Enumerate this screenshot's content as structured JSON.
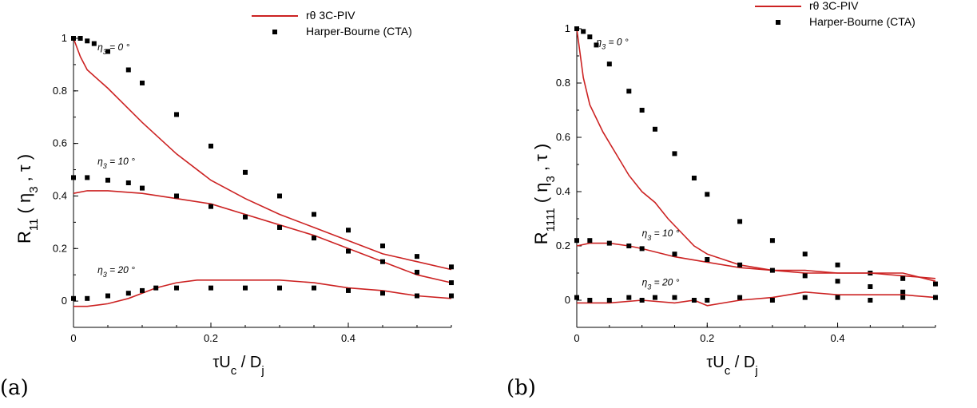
{
  "chart_data": [
    {
      "panel_label": "(a)",
      "type": "line",
      "xlabel_parts": [
        "τU",
        "c",
        " / D",
        "j"
      ],
      "ylabel_parts": [
        "R",
        "11",
        " ( η",
        "3",
        " , τ )"
      ],
      "xlim": [
        0,
        0.55
      ],
      "ylim": [
        -0.1,
        1.0
      ],
      "xticks": [
        0,
        0.2,
        0.4
      ],
      "xtick_labels": [
        "0",
        "0.2",
        "0.4"
      ],
      "yticks": [
        0,
        0.2,
        0.4,
        0.6,
        0.8,
        1
      ],
      "ytick_labels": [
        "0",
        "0.2",
        "0.4",
        "0.6",
        "0.8",
        "1"
      ],
      "grid": false,
      "legend": {
        "placement": "top-right",
        "entries": [
          {
            "label": "rθ 3C-PIV",
            "marker": "line",
            "color": "#cc2222"
          },
          {
            "label": "Harper-Bourne (CTA)",
            "marker": "square",
            "color": "#000000"
          }
        ]
      },
      "annotations": [
        {
          "parts": [
            "η",
            "3",
            " = 0 °"
          ],
          "x": 0.035,
          "y": 0.955
        },
        {
          "parts": [
            "η",
            "3",
            " = 10 °"
          ],
          "x": 0.035,
          "y": 0.52
        },
        {
          "parts": [
            "η",
            "3",
            " = 20 °"
          ],
          "x": 0.035,
          "y": 0.107
        }
      ],
      "series": [
        {
          "name": "rθ 3C-PIV",
          "angle": "η3 = 0°",
          "style": "line",
          "color": "#cc2222",
          "x": [
            0,
            0.01,
            0.02,
            0.05,
            0.1,
            0.15,
            0.2,
            0.25,
            0.3,
            0.35,
            0.4,
            0.45,
            0.5,
            0.55
          ],
          "y": [
            1.0,
            0.93,
            0.88,
            0.81,
            0.68,
            0.56,
            0.46,
            0.39,
            0.33,
            0.28,
            0.23,
            0.18,
            0.15,
            0.12
          ]
        },
        {
          "name": "Harper-Bourne (CTA)",
          "angle": "η3 = 0°",
          "style": "markers",
          "color": "#000000",
          "x": [
            0,
            0.01,
            0.02,
            0.03,
            0.05,
            0.08,
            0.1,
            0.15,
            0.2,
            0.25,
            0.3,
            0.35,
            0.4,
            0.45,
            0.5,
            0.55
          ],
          "y": [
            1.0,
            1.0,
            0.99,
            0.98,
            0.95,
            0.88,
            0.83,
            0.71,
            0.59,
            0.49,
            0.4,
            0.33,
            0.27,
            0.21,
            0.17,
            0.13
          ]
        },
        {
          "name": "rθ 3C-PIV",
          "angle": "η3 = 10°",
          "style": "line",
          "color": "#cc2222",
          "x": [
            0,
            0.02,
            0.05,
            0.1,
            0.15,
            0.2,
            0.25,
            0.3,
            0.35,
            0.4,
            0.45,
            0.5,
            0.55
          ],
          "y": [
            0.41,
            0.42,
            0.42,
            0.41,
            0.39,
            0.37,
            0.33,
            0.29,
            0.25,
            0.2,
            0.15,
            0.1,
            0.07
          ]
        },
        {
          "name": "Harper-Bourne (CTA)",
          "angle": "η3 = 10°",
          "style": "markers",
          "color": "#000000",
          "x": [
            0,
            0.02,
            0.05,
            0.08,
            0.1,
            0.15,
            0.2,
            0.25,
            0.3,
            0.35,
            0.4,
            0.45,
            0.5,
            0.55
          ],
          "y": [
            0.47,
            0.47,
            0.46,
            0.45,
            0.43,
            0.4,
            0.36,
            0.32,
            0.28,
            0.24,
            0.19,
            0.15,
            0.11,
            0.07
          ]
        },
        {
          "name": "rθ 3C-PIV",
          "angle": "η3 = 20°",
          "style": "line",
          "color": "#cc2222",
          "x": [
            0,
            0.02,
            0.05,
            0.08,
            0.1,
            0.12,
            0.15,
            0.18,
            0.2,
            0.25,
            0.3,
            0.35,
            0.4,
            0.45,
            0.5,
            0.55
          ],
          "y": [
            -0.02,
            -0.02,
            -0.01,
            0.01,
            0.03,
            0.05,
            0.07,
            0.08,
            0.08,
            0.08,
            0.08,
            0.07,
            0.05,
            0.04,
            0.02,
            0.01
          ]
        },
        {
          "name": "Harper-Bourne (CTA)",
          "angle": "η3 = 20°",
          "style": "markers",
          "color": "#000000",
          "x": [
            0,
            0.02,
            0.05,
            0.08,
            0.1,
            0.12,
            0.15,
            0.2,
            0.25,
            0.3,
            0.35,
            0.4,
            0.45,
            0.5,
            0.55
          ],
          "y": [
            0.01,
            0.01,
            0.02,
            0.03,
            0.04,
            0.05,
            0.05,
            0.05,
            0.05,
            0.05,
            0.05,
            0.04,
            0.03,
            0.02,
            0.02
          ]
        }
      ]
    },
    {
      "panel_label": "(b)",
      "type": "line",
      "xlabel_parts": [
        "τU",
        "c",
        " / D",
        "j"
      ],
      "ylabel_parts": [
        "R",
        "1111",
        " ( η",
        "3",
        " , τ )"
      ],
      "xlim": [
        0,
        0.55
      ],
      "ylim": [
        -0.1,
        1.0
      ],
      "xticks": [
        0,
        0.2,
        0.4
      ],
      "xtick_labels": [
        "0",
        "0.2",
        "0.4"
      ],
      "yticks": [
        0,
        0.2,
        0.4,
        0.6,
        0.8,
        1
      ],
      "ytick_labels": [
        "0",
        "0.2",
        "0.4",
        "0.6",
        "0.8",
        "1"
      ],
      "grid": false,
      "legend": {
        "placement": "top-right",
        "entries": [
          {
            "label": "rθ 3C-PIV",
            "marker": "line",
            "color": "#cc2222"
          },
          {
            "label": "Harper-Bourne (CTA)",
            "marker": "square",
            "color": "#000000"
          }
        ]
      },
      "annotations": [
        {
          "parts": [
            "η",
            "3",
            " = 0 °"
          ],
          "x": 0.03,
          "y": 0.94
        },
        {
          "parts": [
            "η",
            "3",
            " = 10 °"
          ],
          "x": 0.1,
          "y": 0.235
        },
        {
          "parts": [
            "η",
            "3",
            " = 20 °"
          ],
          "x": 0.1,
          "y": 0.055
        }
      ],
      "series": [
        {
          "name": "rθ 3C-PIV",
          "angle": "η3 = 0°",
          "style": "line",
          "color": "#cc2222",
          "x": [
            0,
            0.01,
            0.02,
            0.04,
            0.06,
            0.08,
            0.1,
            0.12,
            0.14,
            0.16,
            0.18,
            0.2,
            0.25,
            0.3,
            0.35,
            0.4,
            0.45,
            0.5,
            0.55
          ],
          "y": [
            1.0,
            0.82,
            0.72,
            0.62,
            0.54,
            0.46,
            0.4,
            0.36,
            0.3,
            0.25,
            0.2,
            0.17,
            0.13,
            0.11,
            0.1,
            0.1,
            0.1,
            0.09,
            0.08
          ]
        },
        {
          "name": "Harper-Bourne (CTA)",
          "angle": "η3 = 0°",
          "style": "markers",
          "color": "#000000",
          "x": [
            0,
            0.01,
            0.02,
            0.03,
            0.05,
            0.08,
            0.1,
            0.12,
            0.15,
            0.18,
            0.2,
            0.25,
            0.3,
            0.35,
            0.4,
            0.45,
            0.5,
            0.55
          ],
          "y": [
            1.0,
            0.99,
            0.97,
            0.94,
            0.87,
            0.77,
            0.7,
            0.63,
            0.54,
            0.45,
            0.39,
            0.29,
            0.22,
            0.17,
            0.13,
            0.1,
            0.08,
            0.06
          ]
        },
        {
          "name": "rθ 3C-PIV",
          "angle": "η3 = 10°",
          "style": "line",
          "color": "#cc2222",
          "x": [
            0,
            0.02,
            0.05,
            0.08,
            0.1,
            0.15,
            0.2,
            0.25,
            0.3,
            0.35,
            0.4,
            0.45,
            0.5,
            0.55
          ],
          "y": [
            0.2,
            0.21,
            0.21,
            0.2,
            0.19,
            0.16,
            0.14,
            0.12,
            0.11,
            0.11,
            0.1,
            0.1,
            0.1,
            0.07
          ]
        },
        {
          "name": "Harper-Bourne (CTA)",
          "angle": "η3 = 10°",
          "style": "markers",
          "color": "#000000",
          "x": [
            0,
            0.02,
            0.05,
            0.08,
            0.1,
            0.15,
            0.2,
            0.25,
            0.3,
            0.35,
            0.4,
            0.45,
            0.5,
            0.55
          ],
          "y": [
            0.22,
            0.22,
            0.21,
            0.2,
            0.19,
            0.17,
            0.15,
            0.13,
            0.11,
            0.09,
            0.07,
            0.05,
            0.03,
            0.01
          ]
        },
        {
          "name": "rθ 3C-PIV",
          "angle": "η3 = 20°",
          "style": "line",
          "color": "#cc2222",
          "x": [
            0,
            0.05,
            0.1,
            0.15,
            0.18,
            0.2,
            0.25,
            0.3,
            0.35,
            0.4,
            0.45,
            0.5,
            0.55
          ],
          "y": [
            -0.01,
            -0.01,
            0.0,
            -0.01,
            0.0,
            -0.02,
            0.0,
            0.01,
            0.03,
            0.02,
            0.02,
            0.02,
            0.01
          ]
        },
        {
          "name": "Harper-Bourne (CTA)",
          "angle": "η3 = 20°",
          "style": "markers",
          "color": "#000000",
          "x": [
            0,
            0.02,
            0.05,
            0.08,
            0.1,
            0.12,
            0.15,
            0.18,
            0.2,
            0.25,
            0.3,
            0.35,
            0.4,
            0.45,
            0.5,
            0.55
          ],
          "y": [
            0.01,
            0.0,
            0.0,
            0.01,
            0.0,
            0.01,
            0.01,
            0.0,
            0.0,
            0.01,
            0.0,
            0.01,
            0.01,
            0.0,
            0.01,
            0.01
          ]
        }
      ]
    }
  ]
}
